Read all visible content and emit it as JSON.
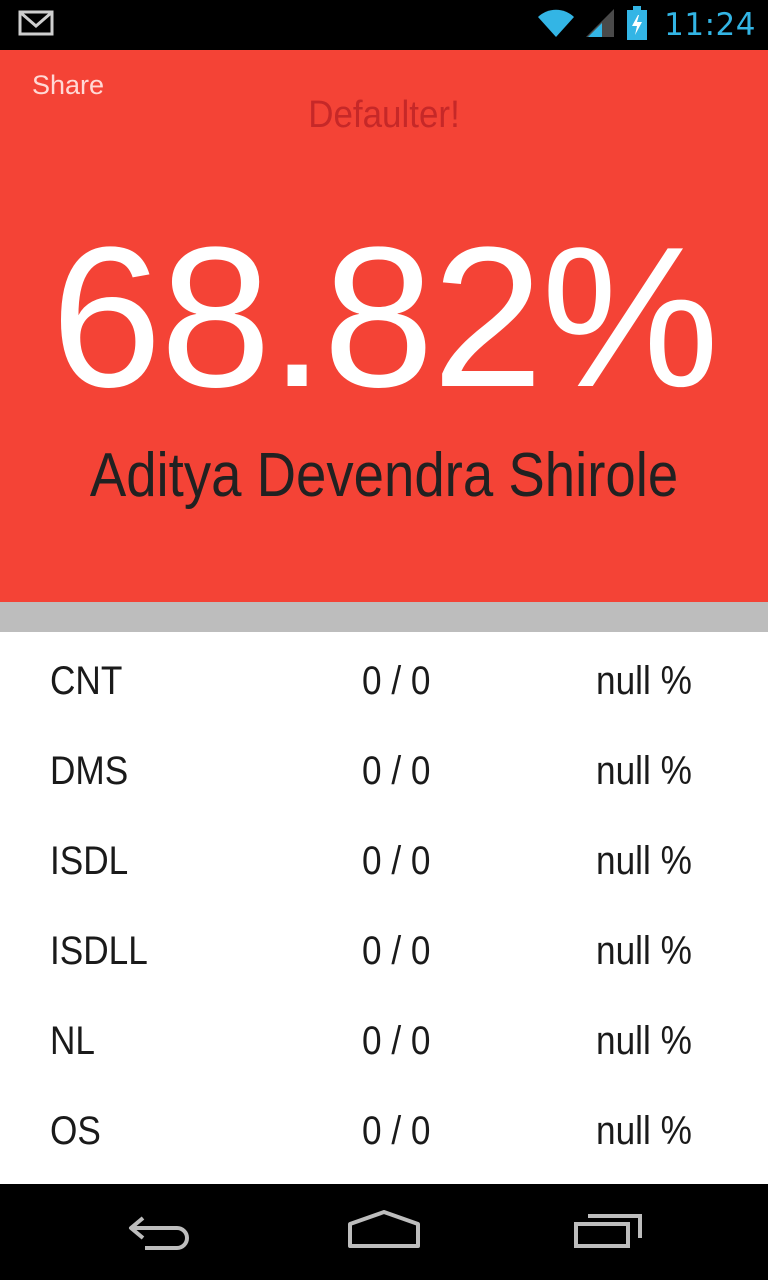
{
  "status_bar": {
    "time": "11:24",
    "icons": [
      "gmail-icon",
      "wifi-icon",
      "signal-icon",
      "battery-charging-icon"
    ],
    "time_color": "#33b5e5"
  },
  "header": {
    "share_label": "Share",
    "status_title": "Defaulter!",
    "percentage": "68.82%",
    "student_name": "Aditya Devendra Shirole",
    "background_color": "#f44336",
    "status_color": "#c62828"
  },
  "subjects": [
    {
      "code": "CNT",
      "count": "0 / 0",
      "percent": "null %"
    },
    {
      "code": "DMS",
      "count": "0 / 0",
      "percent": "null %"
    },
    {
      "code": "ISDL",
      "count": "0 / 0",
      "percent": "null %"
    },
    {
      "code": "ISDLL",
      "count": "0 / 0",
      "percent": "null %"
    },
    {
      "code": "NL",
      "count": "0 / 0",
      "percent": "null %"
    },
    {
      "code": "OS",
      "count": "0 / 0",
      "percent": "null %"
    }
  ],
  "nav_bar": {
    "buttons": [
      "back-icon",
      "home-icon",
      "recent-apps-icon"
    ]
  }
}
